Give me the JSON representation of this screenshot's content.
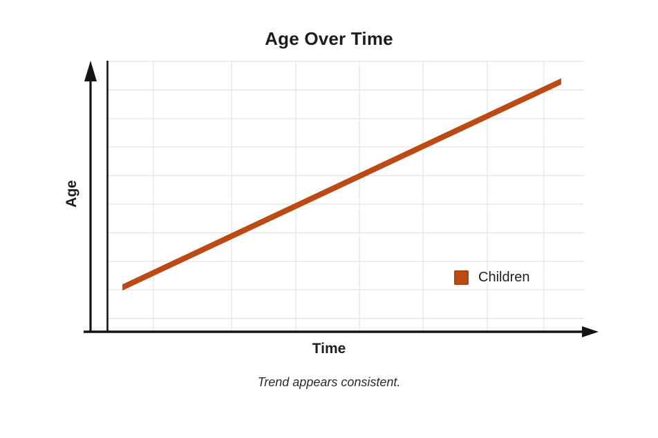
{
  "title": "Age Over Time",
  "xlabel": "Time",
  "ylabel": "Age",
  "caption": "Trend appears consistent.",
  "legend": {
    "label": "Children",
    "swatch_color": "#bc4a14"
  },
  "colors": {
    "line": "#bc4a14",
    "axis": "#141414",
    "grid": "#e2e2e2",
    "text": "#1d1d1d",
    "background": "#ffffff"
  },
  "chart_data": {
    "type": "line",
    "title": "Age Over Time",
    "xlabel": "Time",
    "ylabel": "Age",
    "caption": "Trend appears consistent.",
    "legend_entries": [
      "Children"
    ],
    "legend_position": "right-middle-inside",
    "grid": true,
    "axis_tick_labels_visible": false,
    "axes_style": "arrows, no numeric ticks",
    "series": [
      {
        "name": "Children",
        "color": "#bc4a14",
        "shape": "straight rising line",
        "points_fraction_of_plot": [
          [
            0.032,
            0.164
          ],
          [
            0.952,
            0.926
          ]
        ]
      }
    ]
  }
}
